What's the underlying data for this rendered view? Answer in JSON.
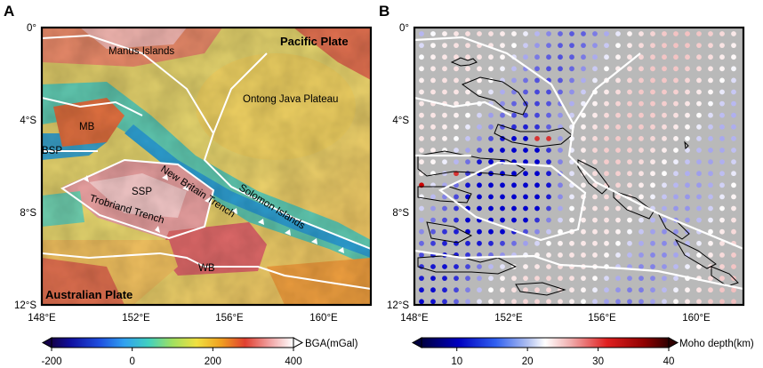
{
  "panels": {
    "a": {
      "letter": "A",
      "labels": {
        "pacific_plate": "Pacific Plate",
        "manus_islands": "Manus Islands",
        "ontong_java": "Ontong Java Plateau",
        "mb": "MB",
        "bsp": "BSP",
        "ssp": "SSP",
        "new_britain_trench": "New Britain Trench",
        "solomon_islands": "Solomon Islands",
        "trobriand_trench": "Trobriand Trench",
        "wb": "WB",
        "australian_plate": "Australian Plate"
      },
      "colorbar": {
        "title": "BGA(mGal)",
        "ticks": [
          "-200",
          "0",
          "200",
          "400"
        ],
        "range": [
          -200,
          400
        ]
      }
    },
    "b": {
      "letter": "B",
      "colorbar": {
        "title": "Moho depth(km)",
        "ticks": [
          "10",
          "20",
          "30",
          "40"
        ],
        "range": [
          5,
          40
        ]
      }
    }
  },
  "axes": {
    "lat_ticks": [
      "0°",
      "4°S",
      "8°S",
      "12°S"
    ],
    "lon_ticks": [
      "148°E",
      "152°E",
      "156°E",
      "160°E"
    ],
    "lon_range": [
      148,
      162
    ],
    "lat_range": [
      0,
      -12
    ]
  },
  "colors": {
    "plate_boundary": "#ffffff",
    "moho_shallow": "#0000cc",
    "moho_mid": "#ffffff",
    "moho_deep": "#cc0000",
    "panel_b_background": "#b9b9b9"
  }
}
